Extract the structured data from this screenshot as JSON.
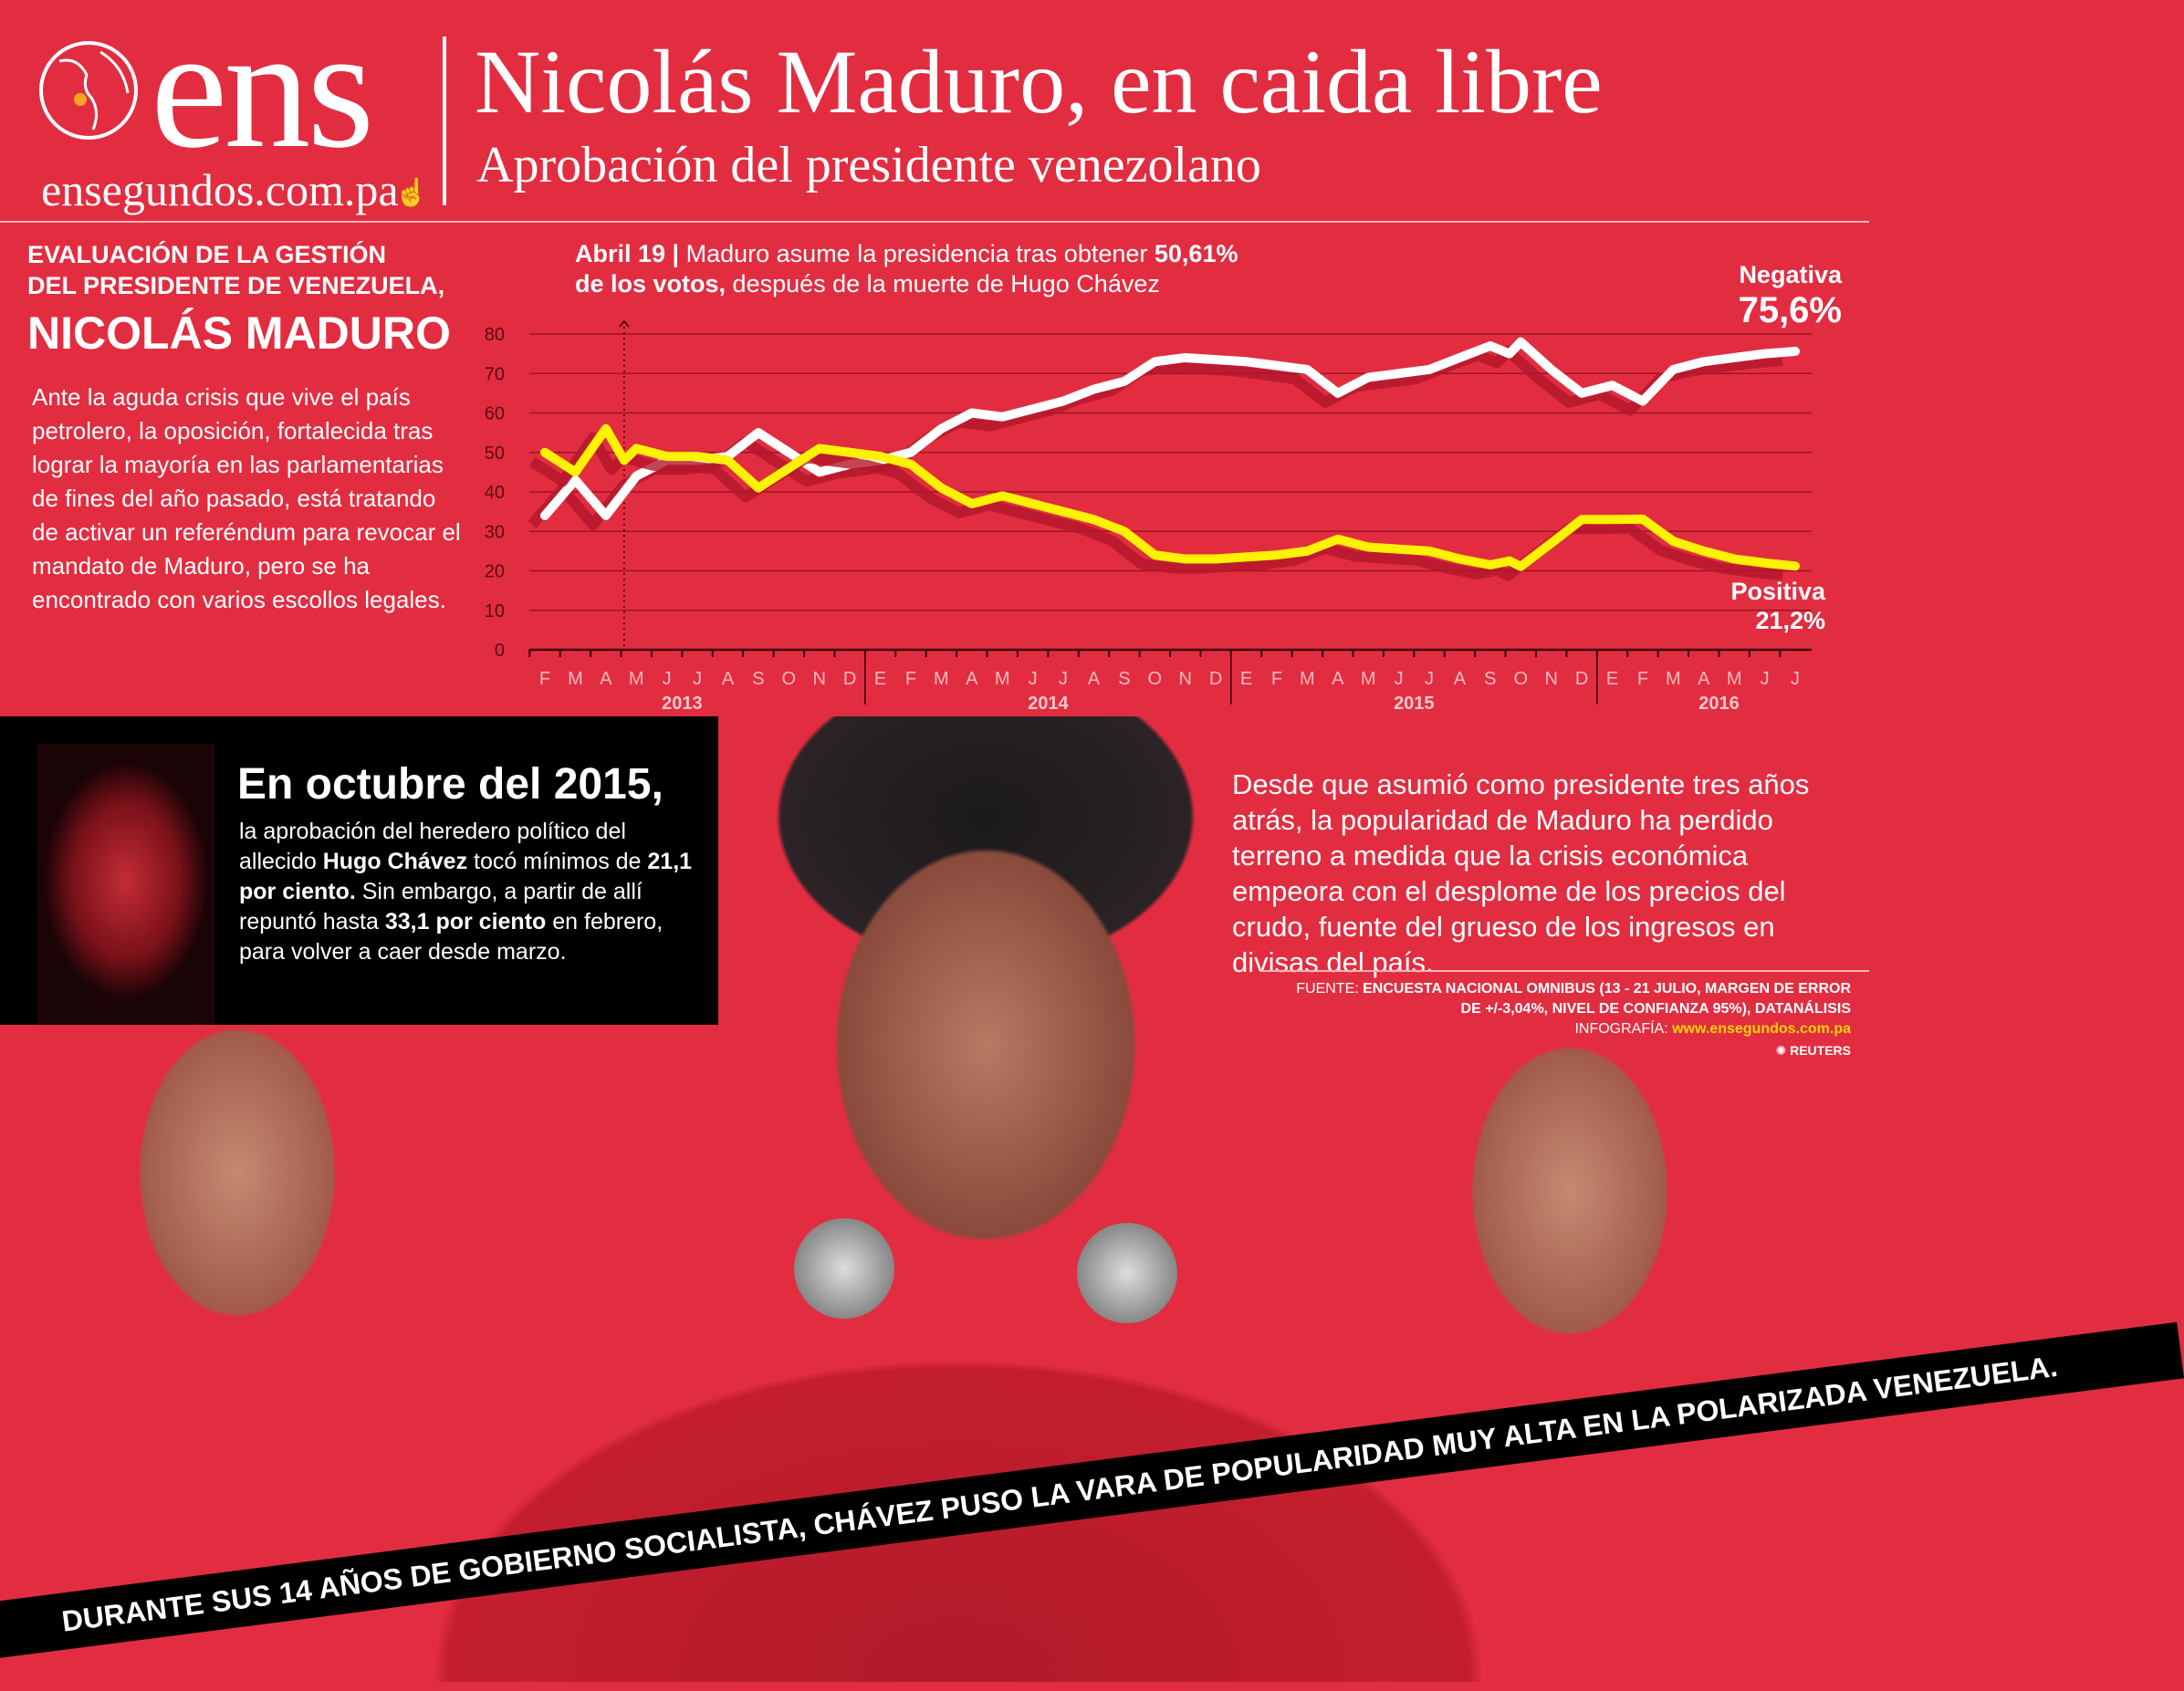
{
  "header": {
    "logo_text": "ens",
    "logo_url": "ensegundos.com.pa",
    "title": "Nicolás Maduro, en caida libre",
    "subtitle": "Aprobación del presidente venezolano"
  },
  "left_panel": {
    "heading_line1": "EVALUACIÓN DE LA GESTIÓN",
    "heading_line2": "DEL PRESIDENTE DE VENEZUELA,",
    "heading_name": "NICOLÁS MADURO",
    "paragraph": "Ante la aguda crisis que vive el país petrolero, la oposición, fortalecida tras lograr la mayoría en las parlamentarias de fines del año pasado, está tratando de activar un referéndum para revocar el mandato de Maduro, pero se ha encontrado con varios escollos legales."
  },
  "annotation": {
    "date": "Abril 19",
    "sep": " | ",
    "text1": "Maduro asume la presidencia tras obtener ",
    "bold1": "50,61%",
    "bold2": "de los votos,",
    "text2": " después de la ",
    "text3": "muerte de Hugo Chávez"
  },
  "chart_data": {
    "type": "line",
    "ylim": [
      0,
      80
    ],
    "yticks": [
      0,
      10,
      20,
      30,
      40,
      50,
      60,
      70,
      80
    ],
    "grid": true,
    "month_labels": [
      "F",
      "M",
      "A",
      "M",
      "J",
      "J",
      "A",
      "S",
      "O",
      "N",
      "D",
      "E",
      "F",
      "M",
      "A",
      "M",
      "J",
      "J",
      "A",
      "S",
      "O",
      "N",
      "D",
      "E",
      "F",
      "M",
      "A",
      "M",
      "J",
      "J",
      "A",
      "S",
      "O",
      "N",
      "D",
      "E",
      "F",
      "M",
      "A",
      "M",
      "J",
      "J"
    ],
    "year_labels": [
      "2013",
      "2014",
      "2015",
      "2016"
    ],
    "event_marker": "2013-04-19",
    "series": [
      {
        "name": "Negativa",
        "end_label": "75,6%",
        "color": "#ffffff",
        "points": [
          [
            "2013-02",
            34
          ],
          [
            "2013-03",
            43
          ],
          [
            "2013-04",
            34
          ],
          [
            "2013-04-19",
            40
          ],
          [
            "2013-05",
            44
          ],
          [
            "2013-06",
            48
          ],
          [
            "2013-07",
            48
          ],
          [
            "2013-08",
            49
          ],
          [
            "2013-09",
            55
          ],
          [
            "2013-10",
            50
          ],
          [
            "2013-11",
            45
          ],
          [
            "2013-12",
            47
          ],
          [
            "2014-01",
            48
          ],
          [
            "2014-02",
            50
          ],
          [
            "2014-03",
            56
          ],
          [
            "2014-04",
            60
          ],
          [
            "2014-05",
            59
          ],
          [
            "2014-06",
            61
          ],
          [
            "2014-07",
            63
          ],
          [
            "2014-08",
            66
          ],
          [
            "2014-09",
            68
          ],
          [
            "2014-10",
            73
          ],
          [
            "2014-11",
            74
          ],
          [
            "2014-12",
            73.5
          ],
          [
            "2015-01",
            73
          ],
          [
            "2015-02",
            72
          ],
          [
            "2015-03",
            71
          ],
          [
            "2015-04",
            65
          ],
          [
            "2015-05",
            69
          ],
          [
            "2015-06",
            70
          ],
          [
            "2015-07",
            71
          ],
          [
            "2015-08",
            74
          ],
          [
            "2015-09",
            77
          ],
          [
            "2015-09-20",
            75
          ],
          [
            "2015-10",
            78
          ],
          [
            "2015-11",
            71
          ],
          [
            "2015-12",
            65
          ],
          [
            "2016-01",
            67
          ],
          [
            "2016-02",
            63
          ],
          [
            "2016-03",
            71
          ],
          [
            "2016-04",
            73
          ],
          [
            "2016-05",
            74
          ],
          [
            "2016-06",
            75
          ],
          [
            "2016-07",
            75.6
          ]
        ]
      },
      {
        "name": "Positiva",
        "end_label": "21,2%",
        "color": "#fff200",
        "points": [
          [
            "2013-02",
            50
          ],
          [
            "2013-03",
            45
          ],
          [
            "2013-04",
            56
          ],
          [
            "2013-04-19",
            48
          ],
          [
            "2013-05",
            51
          ],
          [
            "2013-06",
            49
          ],
          [
            "2013-07",
            49
          ],
          [
            "2013-08",
            48
          ],
          [
            "2013-09",
            41
          ],
          [
            "2013-10",
            46
          ],
          [
            "2013-11",
            51
          ],
          [
            "2013-12",
            50
          ],
          [
            "2014-01",
            49
          ],
          [
            "2014-02",
            47
          ],
          [
            "2014-03",
            41
          ],
          [
            "2014-04",
            37
          ],
          [
            "2014-05",
            39
          ],
          [
            "2014-06",
            37
          ],
          [
            "2014-07",
            35
          ],
          [
            "2014-08",
            33
          ],
          [
            "2014-09",
            30
          ],
          [
            "2014-10",
            24
          ],
          [
            "2014-11",
            23
          ],
          [
            "2014-12",
            23
          ],
          [
            "2015-01",
            23.5
          ],
          [
            "2015-02",
            24
          ],
          [
            "2015-03",
            25
          ],
          [
            "2015-04",
            28
          ],
          [
            "2015-05",
            26
          ],
          [
            "2015-06",
            25.5
          ],
          [
            "2015-07",
            25
          ],
          [
            "2015-08",
            23
          ],
          [
            "2015-09",
            21.5
          ],
          [
            "2015-09-20",
            22.5
          ],
          [
            "2015-10",
            21.1
          ],
          [
            "2015-11",
            27
          ],
          [
            "2015-12",
            33
          ],
          [
            "2016-01",
            33
          ],
          [
            "2016-02",
            33.1
          ],
          [
            "2016-03",
            27.5
          ],
          [
            "2016-04",
            25
          ],
          [
            "2016-05",
            23
          ],
          [
            "2016-06",
            22
          ],
          [
            "2016-07",
            21.2
          ]
        ]
      }
    ]
  },
  "black_box": {
    "title": "En octubre del 2015,",
    "t1": "la aprobación del heredero político del allecido ",
    "b1": "Hugo Chávez",
    "t2": " tocó mínimos de ",
    "b2": "21,1 por ciento.",
    "t3": " Sin embargo, a partir de allí repuntó hasta ",
    "b3": "33,1 por ciento",
    "t4": " en febrero, para volver a caer desde marzo."
  },
  "right_text": "Desde que asumió como presidente tres años atrás, la popularidad de Maduro ha perdido terreno a medida que la crisis económica empeora con el desplome de los precios del crudo, fuente del grueso de los ingresos en divisas del país.",
  "source": {
    "label": "FUENTE: ",
    "line1": "ENCUESTA NACIONAL OMNIBUS (13 - 21 JULIO, MARGEN DE ERROR",
    "line2": "DE +/-3,04%, NIVEL DE CONFIANZA 95%), DATANÁLISIS",
    "infografia_label": "INFOGRAFÍA: ",
    "infografia_url": "www.ensegundos.com.pa",
    "agency": "REUTERS"
  },
  "banner": "DURANTE SUS 14 AÑOS DE GOBIERNO SOCIALISTA, CHÁVEZ PUSO LA VARA DE POPULARIDAD MUY ALTA EN LA POLARIZADA VENEZUELA.",
  "colors": {
    "background": "#e22d41",
    "negative": "#ffffff",
    "positive": "#fff200",
    "accent_url": "#ffd200"
  }
}
